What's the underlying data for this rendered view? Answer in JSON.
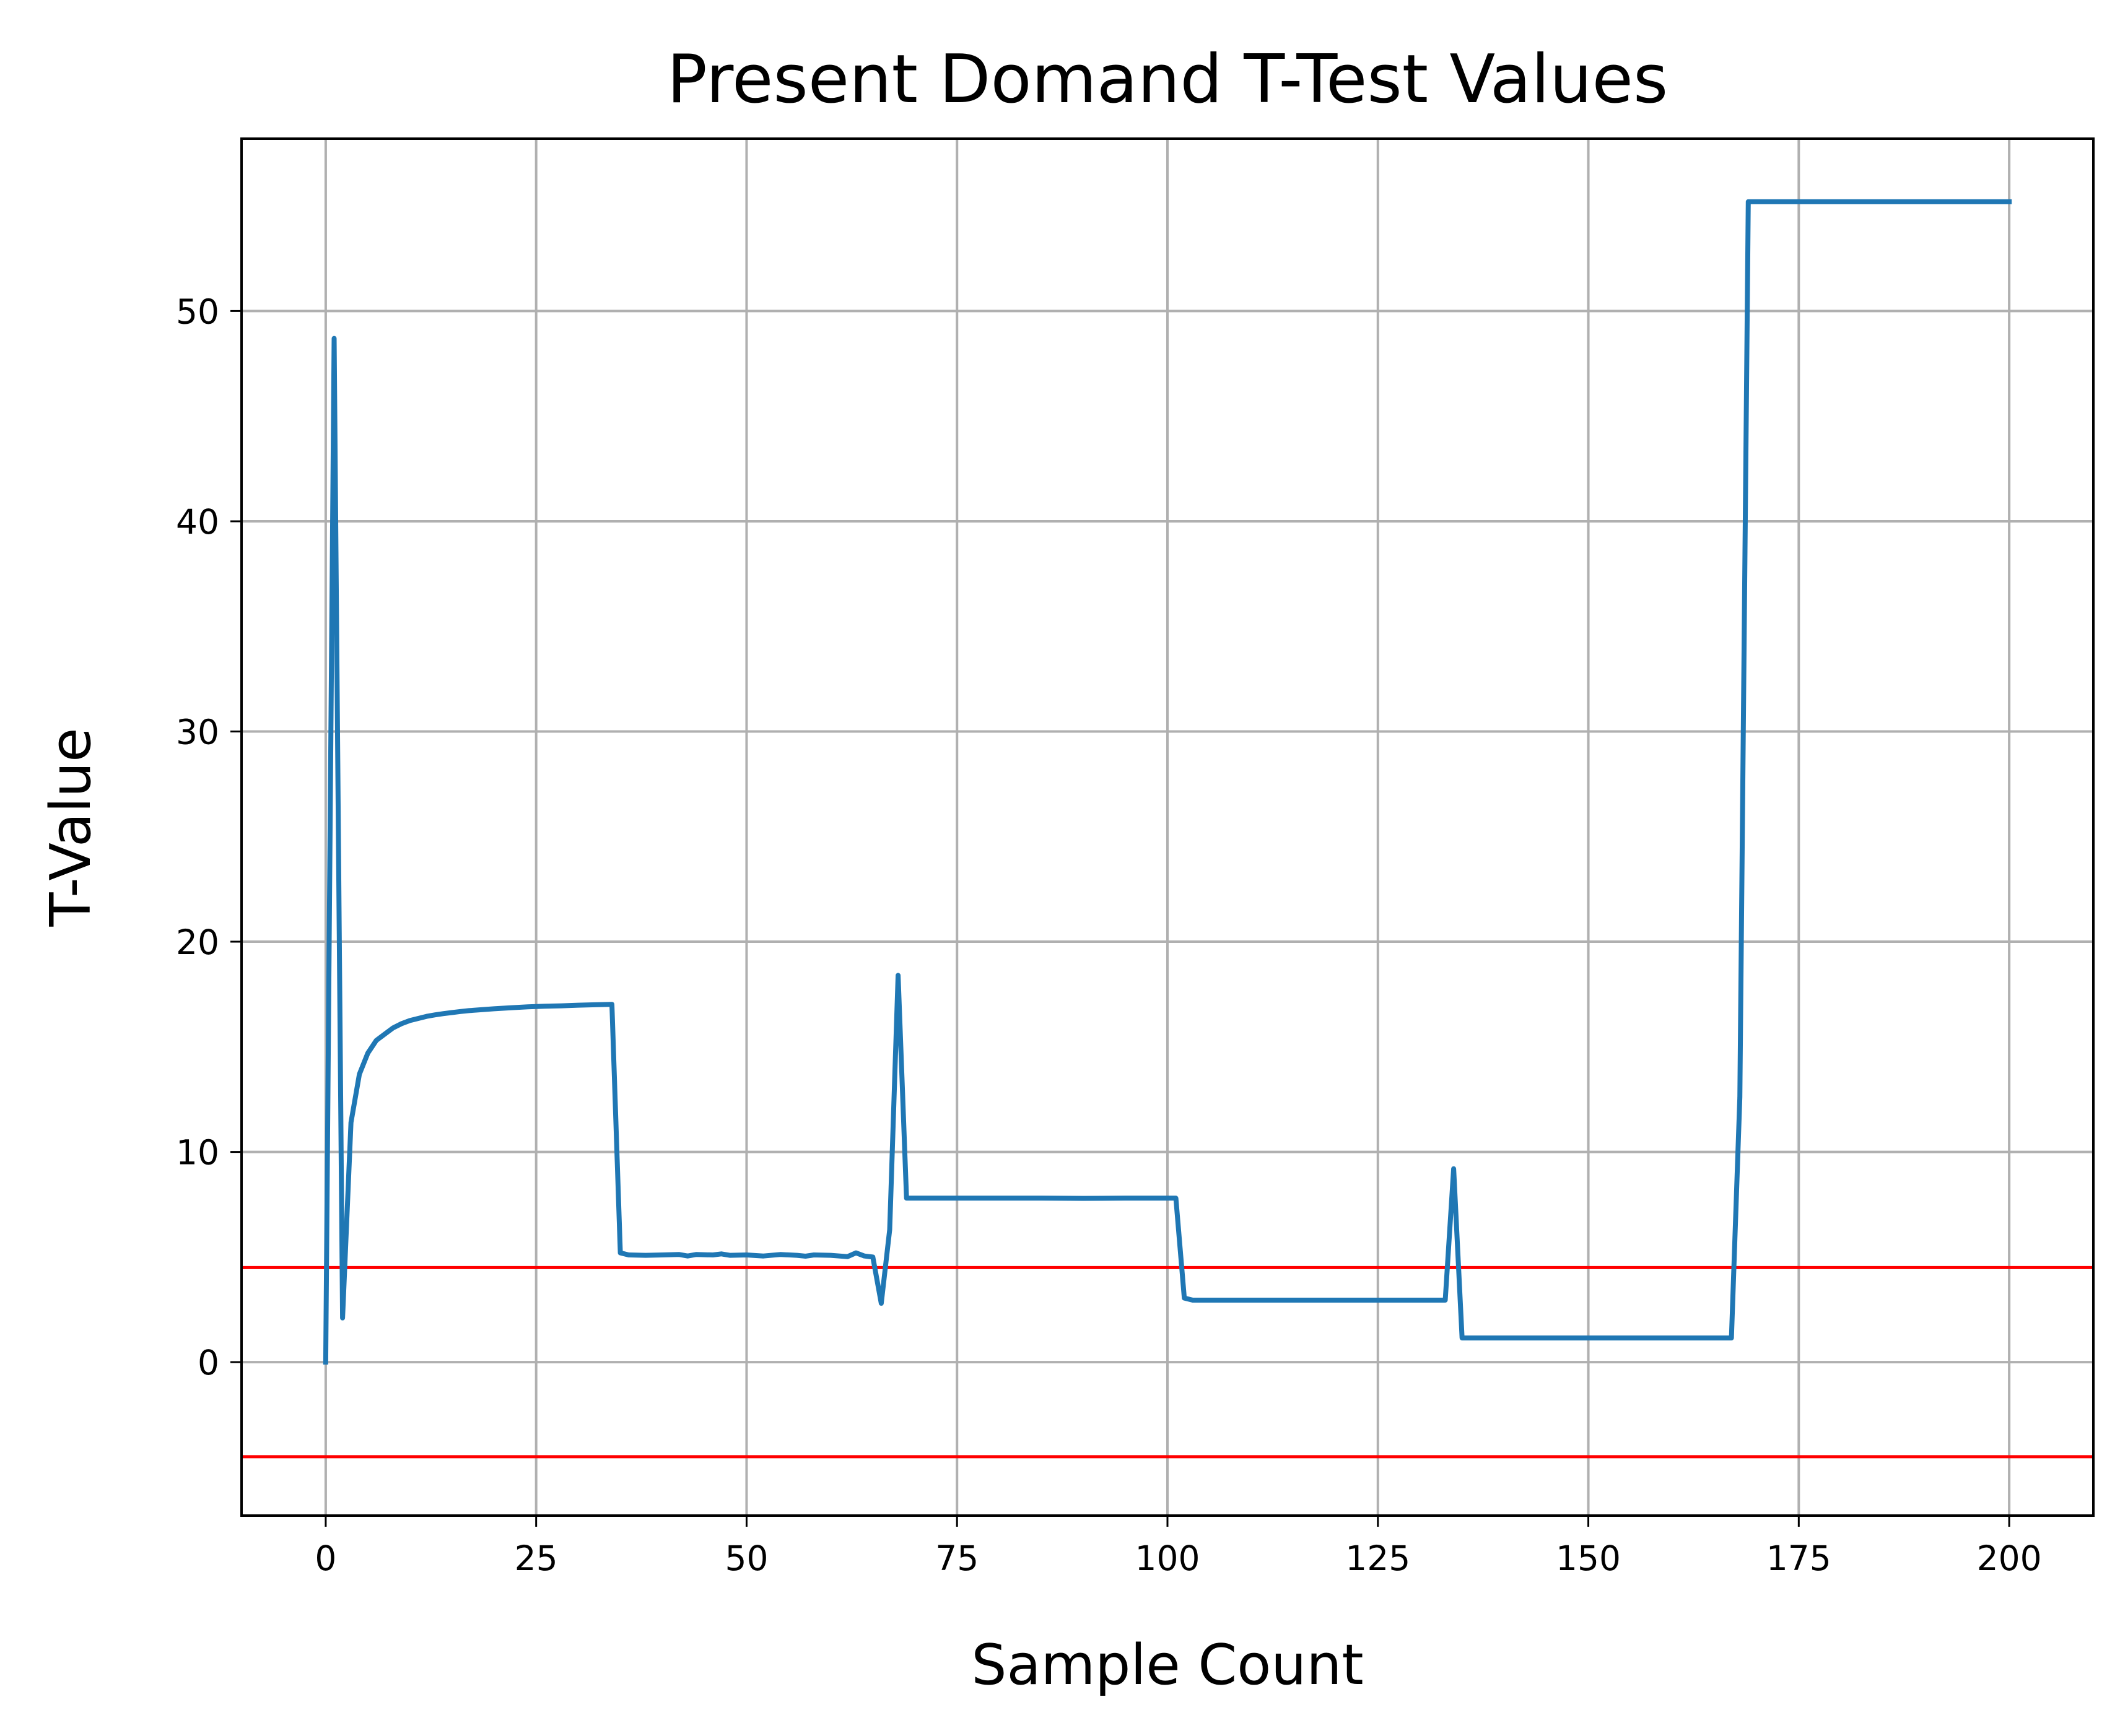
{
  "chart_data": {
    "type": "line",
    "title": "Present Domand T-Test Values",
    "xlabel": "Sample Count",
    "ylabel": "T-Value",
    "xlim": [
      -10,
      210
    ],
    "ylim": [
      -7.3,
      58.2
    ],
    "xticks": [
      0,
      25,
      50,
      75,
      100,
      125,
      150,
      175,
      200
    ],
    "yticks": [
      0,
      10,
      20,
      30,
      40,
      50
    ],
    "grid": true,
    "series": [
      {
        "color": "#1f77b4",
        "points": [
          [
            0,
            0
          ],
          [
            1,
            48.7
          ],
          [
            2,
            2.1
          ],
          [
            3,
            11.4
          ],
          [
            4,
            13.7
          ],
          [
            5,
            14.7
          ],
          [
            6,
            15.3
          ],
          [
            7,
            15.6
          ],
          [
            8,
            15.9
          ],
          [
            9,
            16.1
          ],
          [
            10,
            16.25
          ],
          [
            11,
            16.35
          ],
          [
            12,
            16.45
          ],
          [
            13,
            16.52
          ],
          [
            14,
            16.58
          ],
          [
            15,
            16.63
          ],
          [
            16,
            16.68
          ],
          [
            17,
            16.72
          ],
          [
            18,
            16.75
          ],
          [
            19,
            16.78
          ],
          [
            20,
            16.81
          ],
          [
            22,
            16.86
          ],
          [
            24,
            16.9
          ],
          [
            26,
            16.93
          ],
          [
            28,
            16.95
          ],
          [
            30,
            16.98
          ],
          [
            32,
            17.0
          ],
          [
            34,
            17.02
          ],
          [
            35,
            5.2
          ],
          [
            36,
            5.1
          ],
          [
            38,
            5.08
          ],
          [
            40,
            5.1
          ],
          [
            42,
            5.12
          ],
          [
            43,
            5.05
          ],
          [
            44,
            5.12
          ],
          [
            46,
            5.1
          ],
          [
            47,
            5.15
          ],
          [
            48,
            5.08
          ],
          [
            50,
            5.1
          ],
          [
            52,
            5.05
          ],
          [
            54,
            5.12
          ],
          [
            56,
            5.08
          ],
          [
            57,
            5.04
          ],
          [
            58,
            5.1
          ],
          [
            60,
            5.08
          ],
          [
            62,
            5.02
          ],
          [
            63,
            5.2
          ],
          [
            64,
            5.05
          ],
          [
            65,
            5.0
          ],
          [
            66,
            2.8
          ],
          [
            67,
            6.3
          ],
          [
            68,
            18.4
          ],
          [
            69,
            7.8
          ],
          [
            75,
            7.8
          ],
          [
            80,
            7.8
          ],
          [
            85,
            7.8
          ],
          [
            90,
            7.79
          ],
          [
            95,
            7.8
          ],
          [
            101,
            7.8
          ],
          [
            102,
            3.05
          ],
          [
            103,
            2.95
          ],
          [
            110,
            2.95
          ],
          [
            120,
            2.95
          ],
          [
            130,
            2.95
          ],
          [
            133,
            2.95
          ],
          [
            134,
            9.2
          ],
          [
            135,
            1.15
          ],
          [
            140,
            1.15
          ],
          [
            150,
            1.15
          ],
          [
            160,
            1.15
          ],
          [
            167,
            1.15
          ],
          [
            168,
            12.6
          ],
          [
            169,
            55.2
          ],
          [
            175,
            55.2
          ],
          [
            180,
            55.2
          ],
          [
            185,
            55.2
          ],
          [
            190,
            55.2
          ],
          [
            195,
            55.2
          ],
          [
            200,
            55.2
          ]
        ]
      }
    ],
    "reference_lines": [
      {
        "y": 4.5,
        "color": "#ff0000"
      },
      {
        "y": -4.5,
        "color": "#ff0000"
      }
    ]
  }
}
